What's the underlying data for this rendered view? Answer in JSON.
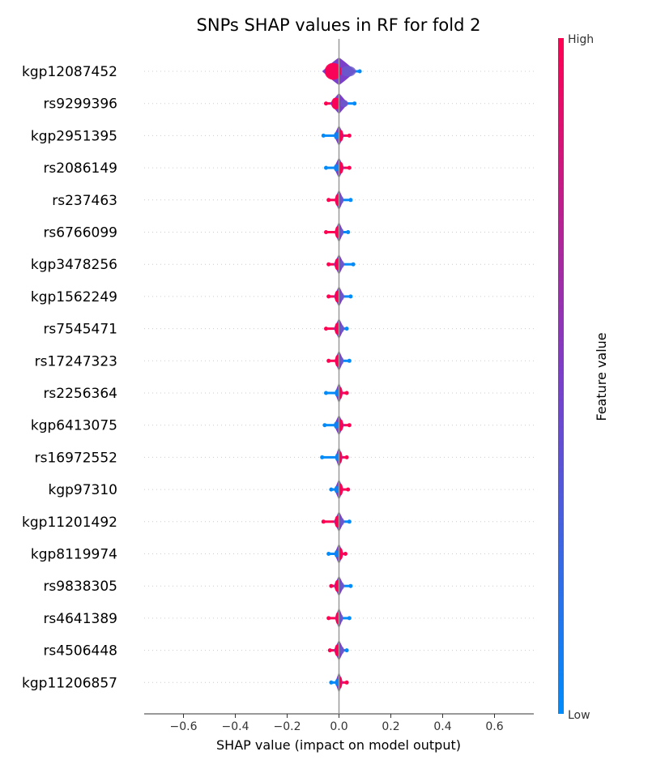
{
  "chart_data": {
    "type": "violin",
    "title": "SNPs SHAP values in RF for fold 2",
    "xlabel": "SHAP value (impact on model output)",
    "ylabel": "",
    "xlim": [
      -0.75,
      0.75
    ],
    "x_ticks": [
      "-0.6",
      "-0.4",
      "-0.2",
      "0.0",
      "0.2",
      "0.4",
      "0.6"
    ],
    "x_tick_values": [
      -0.6,
      -0.4,
      -0.2,
      0.0,
      0.2,
      0.4,
      0.6
    ],
    "colorbar": {
      "label": "Feature value",
      "high_label": "High",
      "low_label": "Low",
      "high_color": "#ff0052",
      "mid_color": "#7b3fc9",
      "low_color": "#008bfb"
    },
    "grid": false,
    "features": [
      {
        "name": "kgp12087452",
        "min": -0.05,
        "max": 0.08,
        "low_side": "right",
        "spread": 0.065
      },
      {
        "name": "rs9299396",
        "min": -0.05,
        "max": 0.06,
        "low_side": "right",
        "spread": 0.035
      },
      {
        "name": "kgp2951395",
        "min": -0.06,
        "max": 0.04,
        "low_side": "left",
        "spread": 0.02
      },
      {
        "name": "rs2086149",
        "min": -0.05,
        "max": 0.04,
        "low_side": "left",
        "spread": 0.02
      },
      {
        "name": "rs237463",
        "min": -0.04,
        "max": 0.045,
        "low_side": "right",
        "spread": 0.018
      },
      {
        "name": "rs6766099",
        "min": -0.05,
        "max": 0.035,
        "low_side": "right",
        "spread": 0.018
      },
      {
        "name": "kgp3478256",
        "min": -0.04,
        "max": 0.055,
        "low_side": "right",
        "spread": 0.02
      },
      {
        "name": "kgp1562249",
        "min": -0.04,
        "max": 0.045,
        "low_side": "right",
        "spread": 0.02
      },
      {
        "name": "rs7545471",
        "min": -0.05,
        "max": 0.03,
        "low_side": "right",
        "spread": 0.02
      },
      {
        "name": "rs17247323",
        "min": -0.04,
        "max": 0.04,
        "low_side": "right",
        "spread": 0.018
      },
      {
        "name": "rs2256364",
        "min": -0.05,
        "max": 0.03,
        "low_side": "left",
        "spread": 0.016
      },
      {
        "name": "kgp6413075",
        "min": -0.055,
        "max": 0.04,
        "low_side": "left",
        "spread": 0.02
      },
      {
        "name": "rs16972552",
        "min": -0.065,
        "max": 0.03,
        "low_side": "left",
        "spread": 0.015
      },
      {
        "name": "kgp97310",
        "min": -0.03,
        "max": 0.035,
        "low_side": "left",
        "spread": 0.018
      },
      {
        "name": "kgp11201492",
        "min": -0.06,
        "max": 0.04,
        "low_side": "right",
        "spread": 0.02
      },
      {
        "name": "kgp8119974",
        "min": -0.04,
        "max": 0.025,
        "low_side": "left",
        "spread": 0.018
      },
      {
        "name": "rs9838305",
        "min": -0.03,
        "max": 0.045,
        "low_side": "right",
        "spread": 0.02
      },
      {
        "name": "rs4641389",
        "min": -0.04,
        "max": 0.04,
        "low_side": "right",
        "spread": 0.016
      },
      {
        "name": "rs4506448",
        "min": -0.035,
        "max": 0.03,
        "low_side": "right",
        "spread": 0.02
      },
      {
        "name": "kgp11206857",
        "min": -0.03,
        "max": 0.03,
        "low_side": "left",
        "spread": 0.015
      }
    ]
  }
}
